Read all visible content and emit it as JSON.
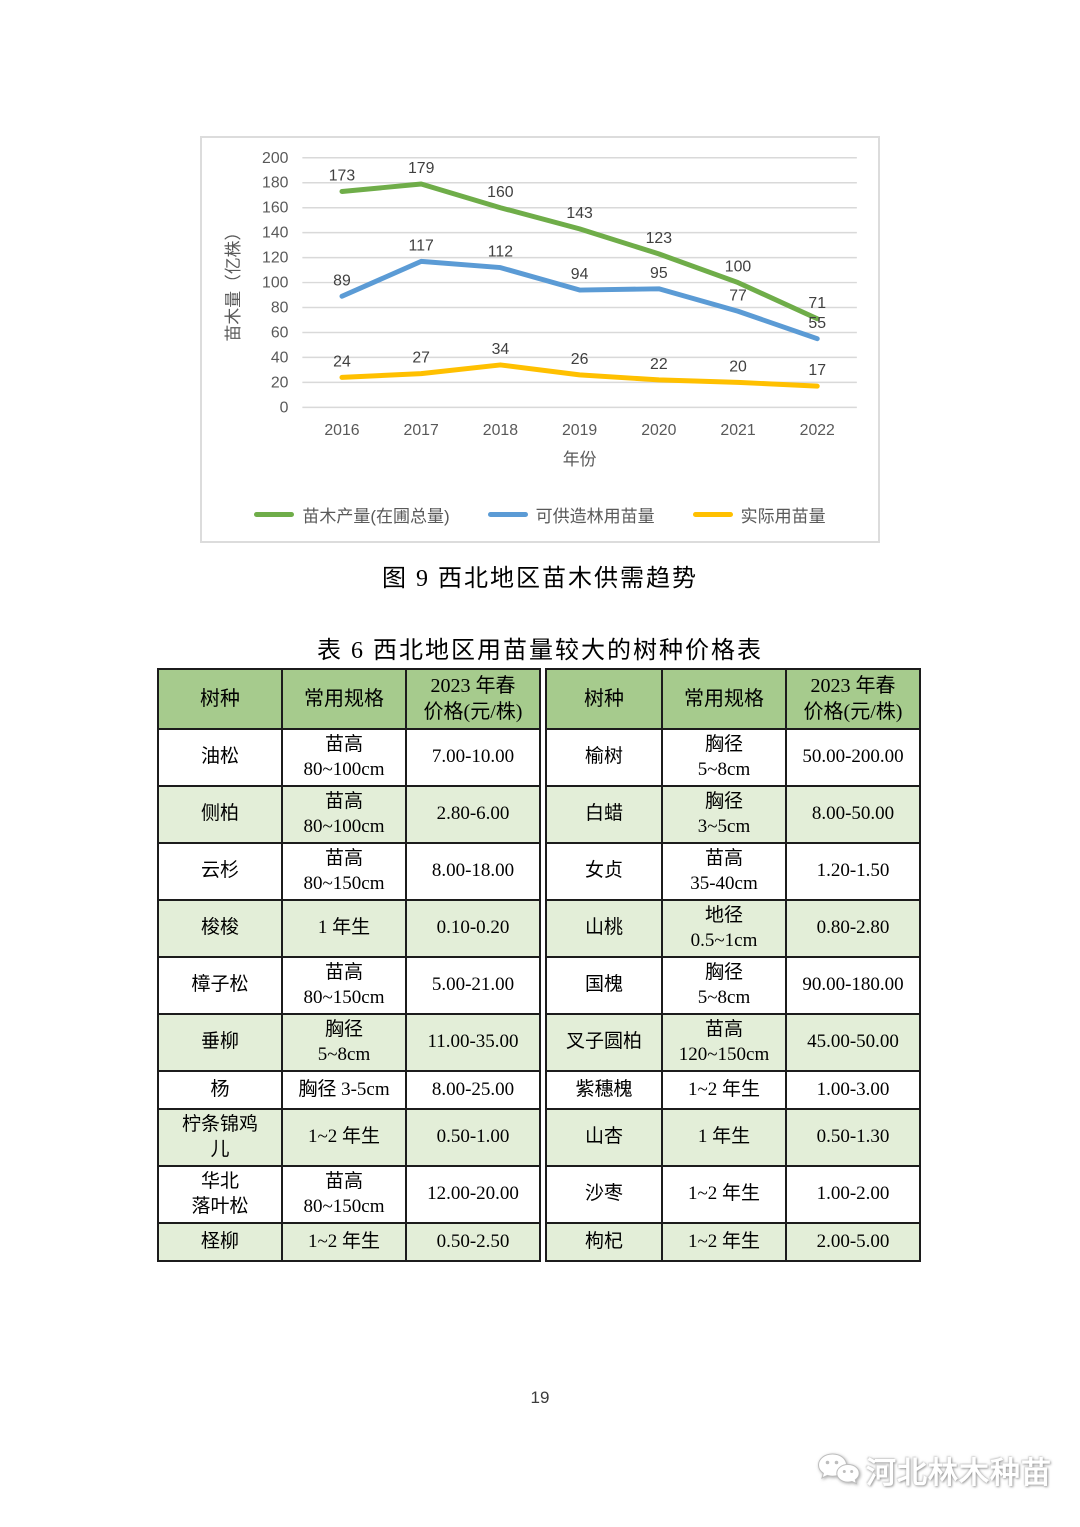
{
  "figure": {
    "caption": "图 9  西北地区苗木供需趋势"
  },
  "chart_data": {
    "type": "line",
    "x": [
      "2016",
      "2017",
      "2018",
      "2019",
      "2020",
      "2021",
      "2022"
    ],
    "xlabel": "年份",
    "ylabel": "苗木量（亿株）",
    "ylim": [
      0,
      200
    ],
    "ytick_step": 20,
    "grid": true,
    "legend_position": "bottom",
    "colors": {
      "gridline": "#d9d9d9",
      "axis_text": "#595959",
      "data_label": "#404040"
    },
    "series": [
      {
        "name": "苗木产量(在圃总量)",
        "color": "#6fad49",
        "values": [
          173,
          179,
          160,
          143,
          123,
          100,
          71
        ]
      },
      {
        "name": "可供造林用苗量",
        "color": "#5b9bd5",
        "values": [
          89,
          117,
          112,
          94,
          95,
          77,
          55
        ]
      },
      {
        "name": "实际用苗量",
        "color": "#ffc000",
        "values": [
          24,
          27,
          34,
          26,
          22,
          20,
          17
        ]
      }
    ]
  },
  "table": {
    "caption": "表 6  西北地区用苗量较大的树种价格表",
    "headers": [
      "树种",
      "常用规格",
      "2023 年春\n价格(元/株)",
      "树种",
      "常用规格",
      "2023 年春\n价格(元/株)"
    ],
    "rows": [
      [
        "油松",
        "苗高\n80~100cm",
        "7.00-10.00",
        "榆树",
        "胸径\n5~8cm",
        "50.00-200.00"
      ],
      [
        "侧柏",
        "苗高\n80~100cm",
        "2.80-6.00",
        "白蜡",
        "胸径\n3~5cm",
        "8.00-50.00"
      ],
      [
        "云杉",
        "苗高\n80~150cm",
        "8.00-18.00",
        "女贞",
        "苗高\n35-40cm",
        "1.20-1.50"
      ],
      [
        "梭梭",
        "1 年生",
        "0.10-0.20",
        "山桃",
        "地径\n0.5~1cm",
        "0.80-2.80"
      ],
      [
        "樟子松",
        "苗高\n80~150cm",
        "5.00-21.00",
        "国槐",
        "胸径\n5~8cm",
        "90.00-180.00"
      ],
      [
        "垂柳",
        "胸径\n5~8cm",
        "11.00-35.00",
        "叉子圆柏",
        "苗高\n120~150cm",
        "45.00-50.00"
      ],
      [
        "杨",
        "胸径 3-5cm",
        "8.00-25.00",
        "紫穗槐",
        "1~2 年生",
        "1.00-3.00"
      ],
      [
        "柠条锦鸡\n儿",
        "1~2 年生",
        "0.50-1.00",
        "山杏",
        "1 年生",
        "0.50-1.30"
      ],
      [
        "华北\n落叶松",
        "苗高\n80~150cm",
        "12.00-20.00",
        "沙枣",
        "1~2 年生",
        "1.00-2.00"
      ],
      [
        "柽柳",
        "1~2 年生",
        "0.50-2.50",
        "枸杞",
        "1~2 年生",
        "2.00-5.00"
      ]
    ],
    "colors": {
      "header_bg": "#a6cb8d",
      "alt_row_bg": "#e3eed8",
      "border": "#1c1c1c"
    }
  },
  "footer": {
    "page_number": "19",
    "watermark_text": "河北林木种苗"
  }
}
